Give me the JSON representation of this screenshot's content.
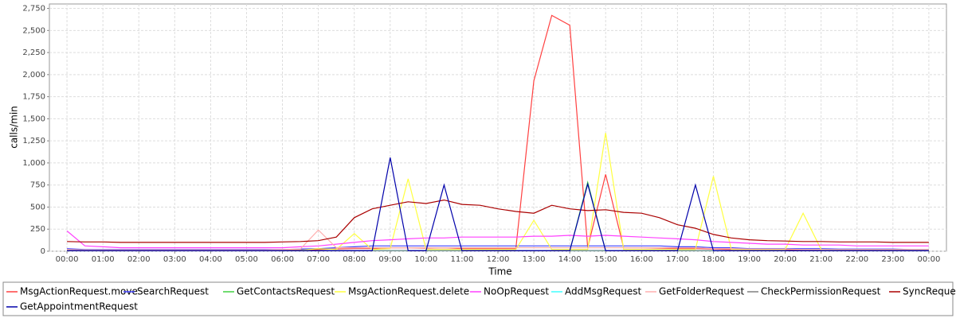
{
  "chart_data": {
    "type": "line",
    "x_label": "Time",
    "y_label": "calls/min",
    "x": [
      0,
      0.5,
      1,
      1.5,
      2,
      2.5,
      3,
      3.5,
      4,
      4.5,
      5,
      5.5,
      6,
      6.5,
      7,
      7.5,
      8,
      8.5,
      9,
      9.5,
      10,
      10.5,
      11,
      11.5,
      12,
      12.5,
      13,
      13.5,
      14,
      14.5,
      15,
      15.5,
      16,
      16.5,
      17,
      17.5,
      18,
      18.5,
      19,
      19.5,
      20,
      20.5,
      21,
      21.5,
      22,
      22.5,
      23,
      23.5,
      24
    ],
    "xlim": [
      -0.49,
      24.49
    ],
    "xticks": [
      {
        "value": 0,
        "label": "00:00"
      },
      {
        "value": 1,
        "label": "01:00"
      },
      {
        "value": 2,
        "label": "02:00"
      },
      {
        "value": 3,
        "label": "03:00"
      },
      {
        "value": 4,
        "label": "04:00"
      },
      {
        "value": 5,
        "label": "05:00"
      },
      {
        "value": 6,
        "label": "06:00"
      },
      {
        "value": 7,
        "label": "07:00"
      },
      {
        "value": 8,
        "label": "08:00"
      },
      {
        "value": 9,
        "label": "09:00"
      },
      {
        "value": 10,
        "label": "10:00"
      },
      {
        "value": 11,
        "label": "11:00"
      },
      {
        "value": 12,
        "label": "12:00"
      },
      {
        "value": 13,
        "label": "13:00"
      },
      {
        "value": 14,
        "label": "14:00"
      },
      {
        "value": 15,
        "label": "15:00"
      },
      {
        "value": 16,
        "label": "16:00"
      },
      {
        "value": 17,
        "label": "17:00"
      },
      {
        "value": 18,
        "label": "18:00"
      },
      {
        "value": 19,
        "label": "19:00"
      },
      {
        "value": 20,
        "label": "20:00"
      },
      {
        "value": 21,
        "label": "21:00"
      },
      {
        "value": 22,
        "label": "22:00"
      },
      {
        "value": 23,
        "label": "23:00"
      },
      {
        "value": 24,
        "label": "00:00"
      }
    ],
    "ylim": [
      0,
      2800
    ],
    "yticks": [
      0,
      250,
      500,
      750,
      {
        "value": 1000,
        "label": "1,000"
      },
      {
        "value": 1250,
        "label": "1,250"
      },
      {
        "value": 1500,
        "label": "1,500"
      },
      {
        "value": 1750,
        "label": "1,750"
      },
      {
        "value": 2000,
        "label": "2,000"
      },
      {
        "value": 2250,
        "label": "2,250"
      },
      {
        "value": 2500,
        "label": "2,500"
      },
      {
        "value": 2750,
        "label": "2,750"
      }
    ],
    "grid": true,
    "series": [
      {
        "name": "MsgActionRequest.move",
        "color": "#ff4040",
        "values": [
          20,
          15,
          15,
          10,
          10,
          10,
          10,
          10,
          10,
          10,
          10,
          10,
          10,
          15,
          20,
          25,
          30,
          30,
          40,
          40,
          35,
          40,
          30,
          30,
          30,
          30,
          1930,
          2670,
          2560,
          40,
          870,
          40,
          40,
          35,
          30,
          30,
          25,
          20,
          20,
          20,
          20,
          15,
          15,
          15,
          15,
          15,
          15,
          15,
          15
        ]
      },
      {
        "name": "SearchRequest",
        "color": "#4040ff",
        "values": [
          30,
          20,
          20,
          20,
          20,
          20,
          20,
          20,
          20,
          20,
          20,
          20,
          20,
          25,
          30,
          40,
          50,
          60,
          60,
          60,
          60,
          60,
          60,
          60,
          60,
          60,
          60,
          60,
          60,
          60,
          60,
          60,
          60,
          60,
          50,
          50,
          40,
          40,
          30,
          30,
          30,
          30,
          30,
          25,
          25,
          25,
          25,
          20,
          20
        ]
      },
      {
        "name": "GetContactsRequest",
        "color": "#40d040",
        "values": [
          5,
          5,
          5,
          5,
          5,
          5,
          5,
          5,
          5,
          5,
          5,
          5,
          5,
          5,
          5,
          5,
          5,
          5,
          5,
          5,
          5,
          5,
          5,
          5,
          5,
          5,
          5,
          5,
          5,
          780,
          5,
          5,
          5,
          5,
          5,
          5,
          5,
          5,
          5,
          5,
          5,
          5,
          5,
          5,
          5,
          5,
          5,
          5,
          5
        ]
      },
      {
        "name": "MsgActionRequest.delete",
        "color": "#ffff40",
        "values": [
          10,
          10,
          10,
          10,
          10,
          10,
          10,
          10,
          10,
          10,
          10,
          10,
          10,
          10,
          30,
          20,
          200,
          20,
          30,
          820,
          20,
          20,
          20,
          20,
          20,
          20,
          350,
          20,
          20,
          20,
          1340,
          20,
          20,
          20,
          20,
          20,
          850,
          20,
          20,
          20,
          20,
          430,
          20,
          10,
          10,
          10,
          10,
          10,
          10
        ]
      },
      {
        "name": "NoOpRequest",
        "color": "#ff40ff",
        "values": [
          230,
          60,
          50,
          40,
          40,
          40,
          40,
          40,
          40,
          40,
          40,
          40,
          40,
          50,
          60,
          80,
          100,
          120,
          130,
          140,
          150,
          150,
          160,
          160,
          160,
          160,
          170,
          170,
          180,
          170,
          180,
          170,
          160,
          150,
          140,
          130,
          110,
          100,
          90,
          80,
          80,
          70,
          70,
          70,
          60,
          60,
          60,
          60,
          60
        ]
      },
      {
        "name": "AddMsgRequest",
        "color": "#40ffff",
        "values": [
          5,
          5,
          5,
          5,
          5,
          5,
          5,
          5,
          5,
          5,
          5,
          5,
          5,
          5,
          5,
          5,
          5,
          5,
          5,
          5,
          5,
          5,
          5,
          5,
          5,
          5,
          5,
          5,
          5,
          5,
          5,
          5,
          5,
          5,
          5,
          5,
          5,
          5,
          5,
          5,
          5,
          5,
          5,
          5,
          5,
          5,
          5,
          5,
          5
        ]
      },
      {
        "name": "GetFolderRequest",
        "color": "#ffafaf",
        "values": [
          20,
          15,
          15,
          15,
          15,
          15,
          15,
          15,
          15,
          15,
          15,
          15,
          20,
          25,
          240,
          40,
          40,
          40,
          40,
          40,
          40,
          40,
          40,
          40,
          40,
          40,
          40,
          40,
          40,
          40,
          40,
          40,
          40,
          40,
          40,
          40,
          30,
          30,
          25,
          25,
          25,
          20,
          20,
          20,
          20,
          20,
          20,
          20,
          20
        ]
      },
      {
        "name": "CheckPermissionRequest",
        "color": "#808080",
        "values": [
          8,
          8,
          8,
          8,
          8,
          8,
          8,
          8,
          8,
          8,
          8,
          8,
          8,
          8,
          8,
          8,
          8,
          8,
          8,
          8,
          8,
          8,
          8,
          8,
          8,
          8,
          8,
          8,
          8,
          8,
          8,
          8,
          8,
          8,
          8,
          8,
          8,
          8,
          8,
          8,
          8,
          8,
          8,
          8,
          8,
          8,
          8,
          8,
          8
        ]
      },
      {
        "name": "SyncRequest",
        "color": "#aa0000",
        "values": [
          110,
          105,
          105,
          100,
          100,
          100,
          100,
          100,
          100,
          100,
          100,
          100,
          105,
          110,
          120,
          160,
          380,
          480,
          520,
          560,
          540,
          580,
          530,
          520,
          480,
          450,
          430,
          520,
          480,
          460,
          470,
          440,
          430,
          380,
          300,
          260,
          190,
          150,
          130,
          120,
          115,
          110,
          110,
          105,
          105,
          105,
          100,
          100,
          100
        ]
      },
      {
        "name": "GetAppointmentRequest",
        "color": "#0000aa",
        "values": [
          5,
          5,
          5,
          5,
          5,
          5,
          5,
          5,
          5,
          5,
          5,
          5,
          5,
          5,
          5,
          5,
          5,
          5,
          1060,
          5,
          5,
          750,
          5,
          5,
          5,
          5,
          5,
          5,
          5,
          760,
          5,
          5,
          5,
          5,
          5,
          750,
          5,
          5,
          5,
          5,
          5,
          5,
          5,
          5,
          5,
          5,
          5,
          5,
          5
        ]
      }
    ]
  }
}
